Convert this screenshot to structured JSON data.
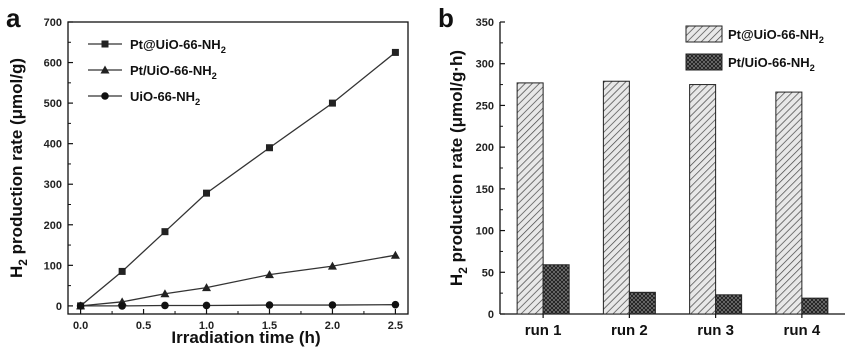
{
  "chart_data": [
    {
      "type": "line",
      "panel_label": "a",
      "xlabel": "Irradiation time (h)",
      "ylabel": "H",
      "ylabel_sub": "2",
      "ylabel_rest": " production rate (μmol/g)",
      "xlim": [
        -0.1,
        2.6
      ],
      "ylim": [
        -20,
        700
      ],
      "xticks": [
        0.0,
        0.5,
        1.0,
        1.5,
        2.0,
        2.5
      ],
      "xtick_labels": [
        "0.0",
        "0.5",
        "1.0",
        "1.5",
        "2.0",
        "2.5"
      ],
      "yticks": [
        0,
        100,
        200,
        300,
        400,
        500,
        600,
        700
      ],
      "ytick_labels": [
        "0",
        "100",
        "200",
        "300",
        "400",
        "500",
        "600",
        "700"
      ],
      "legend_position": "top-left",
      "series": [
        {
          "name": "Pt@UiO-66-NH",
          "name_sub": "2",
          "marker": "square",
          "x": [
            0,
            0.33,
            0.67,
            1.0,
            1.5,
            2.0,
            2.5
          ],
          "values": [
            0,
            85,
            183,
            278,
            390,
            500,
            625
          ]
        },
        {
          "name": "Pt/UiO-66-NH",
          "name_sub": "2",
          "marker": "triangle",
          "x": [
            0,
            0.33,
            0.67,
            1.0,
            1.5,
            2.0,
            2.5
          ],
          "values": [
            0,
            10,
            30,
            45,
            77,
            98,
            125
          ]
        },
        {
          "name": "UiO-66-NH",
          "name_sub": "2",
          "marker": "circle",
          "x": [
            0,
            0.33,
            0.67,
            1.0,
            1.5,
            2.0,
            2.5
          ],
          "values": [
            0,
            0,
            1,
            1,
            2,
            2,
            3
          ]
        }
      ]
    },
    {
      "type": "bar",
      "panel_label": "b",
      "categories": [
        "run 1",
        "run 2",
        "run 3",
        "run 4"
      ],
      "xlabel": "",
      "ylabel": "H",
      "ylabel_sub": "2",
      "ylabel_rest": " production rate (μmol/g·h)",
      "ylim": [
        0,
        350
      ],
      "yticks": [
        0,
        50,
        100,
        150,
        200,
        250,
        300,
        350
      ],
      "ytick_labels": [
        "0",
        "50",
        "100",
        "150",
        "200",
        "250",
        "300",
        "350"
      ],
      "legend_position": "top-right",
      "series": [
        {
          "name": "Pt@UiO-66-NH",
          "name_sub": "2",
          "pattern": "diagonal-hatch",
          "values": [
            277,
            279,
            275,
            266
          ]
        },
        {
          "name": "Pt/UiO-66-NH",
          "name_sub": "2",
          "pattern": "crosshatch",
          "values": [
            59,
            26,
            23,
            19
          ]
        }
      ]
    }
  ]
}
